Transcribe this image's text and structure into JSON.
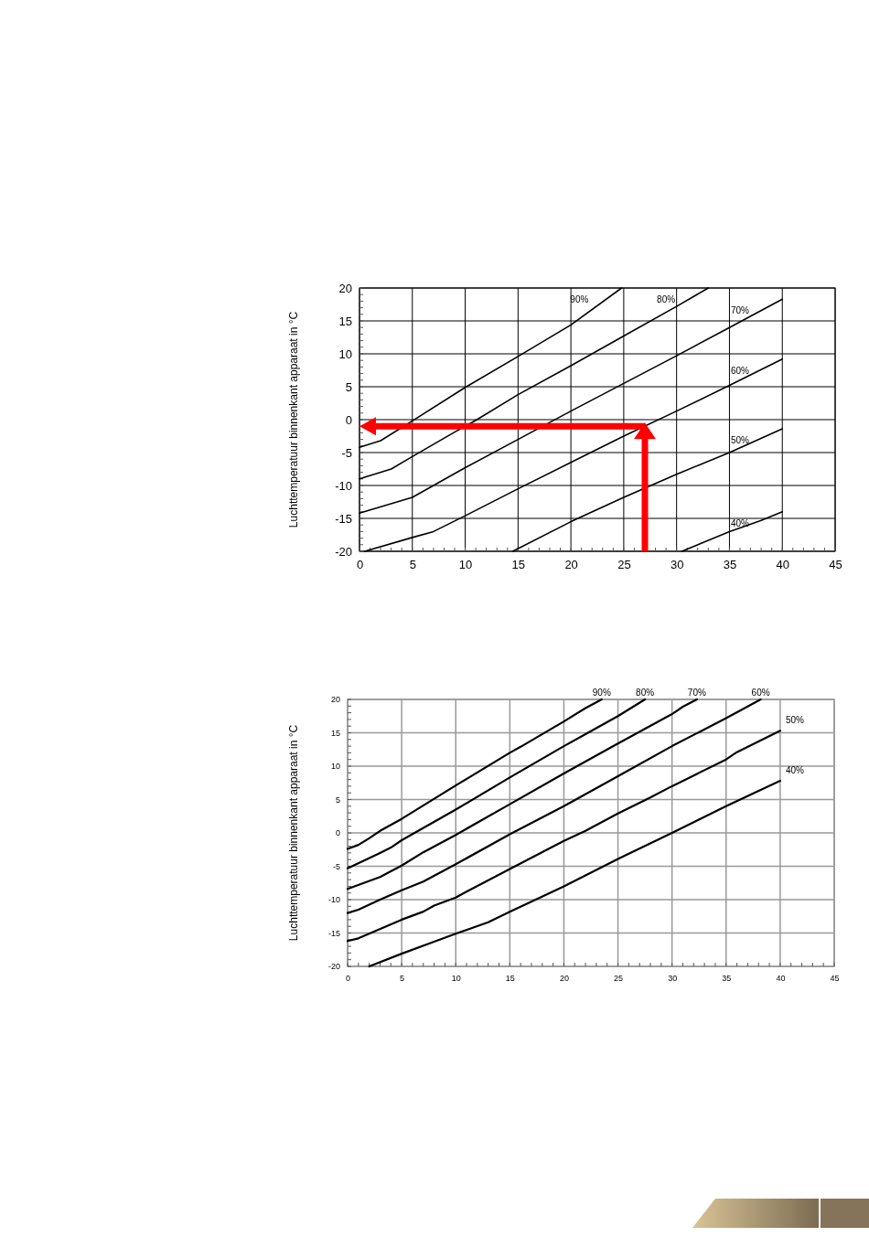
{
  "chart_data": [
    {
      "type": "line",
      "ylabel": "Luchttemperatuur binnenkant apparaat in °C",
      "xlim": [
        0,
        45
      ],
      "ylim": [
        -20,
        20
      ],
      "xticks": [
        0,
        5,
        10,
        15,
        20,
        25,
        30,
        35,
        40,
        45
      ],
      "yticks": [
        -20,
        -15,
        -10,
        -5,
        0,
        5,
        10,
        15,
        20
      ],
      "grid": true,
      "legend": false,
      "marker": "none",
      "line_style": "solid",
      "series": [
        {
          "name": "90%",
          "color": "#000000",
          "x": [
            0,
            2,
            5,
            10,
            15,
            20,
            24.8
          ],
          "values": [
            -4.2,
            -3.2,
            -0.2,
            4.9,
            9.6,
            14.4,
            20
          ]
        },
        {
          "name": "80%",
          "color": "#000000",
          "x": [
            0,
            3,
            5,
            9,
            11,
            15,
            20,
            25,
            30,
            33
          ],
          "values": [
            -9,
            -7.5,
            -5.6,
            -1.9,
            -0.1,
            3.8,
            8.2,
            12.7,
            17.2,
            20
          ]
        },
        {
          "name": "70%",
          "color": "#000000",
          "x": [
            0,
            5,
            10,
            15,
            20,
            25,
            30,
            35,
            40
          ],
          "values": [
            -14.2,
            -11.8,
            -7.3,
            -3,
            1.3,
            5.5,
            9.7,
            14,
            18.3
          ]
        },
        {
          "name": "60%",
          "color": "#000000",
          "x": [
            0.5,
            5,
            7,
            10,
            15,
            20,
            25,
            30,
            35,
            40
          ],
          "values": [
            -20,
            -17.9,
            -17,
            -14.6,
            -10.5,
            -6.5,
            -2.5,
            1.3,
            5.2,
            9.2
          ]
        },
        {
          "name": "50%",
          "color": "#000000",
          "x": [
            14.5,
            20,
            25,
            30,
            35,
            40
          ],
          "values": [
            -20,
            -15.5,
            -11.8,
            -8.3,
            -5,
            -1.4
          ]
        },
        {
          "name": "40%",
          "color": "#000000",
          "x": [
            30.5,
            35,
            38,
            40
          ],
          "values": [
            -20,
            -17,
            -15.3,
            -14
          ]
        }
      ]
    },
    {
      "type": "line",
      "ylabel": "Luchttemperatuur binnenkant apparaat in °C",
      "xlim": [
        0,
        45
      ],
      "ylim": [
        -20,
        20
      ],
      "xticks": [
        0,
        5,
        10,
        15,
        20,
        25,
        30,
        35,
        40,
        45
      ],
      "yticks": [
        -20,
        -15,
        -10,
        -5,
        0,
        5,
        10,
        15,
        20
      ],
      "grid": true,
      "legend": false,
      "marker": "none",
      "line_style": "solid",
      "series": [
        {
          "name": "90%",
          "color": "#000000",
          "x": [
            0,
            1,
            2,
            3,
            5,
            10,
            15,
            16,
            20,
            22,
            23.5
          ],
          "values": [
            -2.4,
            -1.8,
            -0.8,
            0.3,
            2.1,
            7.1,
            12,
            12.9,
            16.7,
            18.7,
            20
          ]
        },
        {
          "name": "80%",
          "color": "#000000",
          "x": [
            0,
            3,
            4,
            5,
            10,
            15,
            20,
            22,
            25,
            27.5
          ],
          "values": [
            -5.3,
            -3,
            -2.2,
            -1.1,
            3.5,
            8.3,
            13,
            14.8,
            17.5,
            20
          ]
        },
        {
          "name": "70%",
          "color": "#000000",
          "x": [
            0,
            3,
            5,
            7,
            10,
            15,
            20,
            25,
            30,
            31,
            32.3
          ],
          "values": [
            -8.4,
            -6.6,
            -4.9,
            -2.9,
            -0.3,
            4.3,
            8.9,
            13.4,
            17.8,
            18.9,
            20
          ]
        },
        {
          "name": "60%",
          "color": "#000000",
          "x": [
            0,
            1,
            3,
            5,
            7,
            10,
            15,
            20,
            25,
            30,
            35,
            38.2
          ],
          "values": [
            -12,
            -11.5,
            -10,
            -8.6,
            -7.3,
            -4.7,
            -0.2,
            4,
            8.5,
            13,
            17.2,
            20
          ]
        },
        {
          "name": "50%",
          "color": "#000000",
          "x": [
            0,
            1,
            5,
            7,
            8,
            10,
            11,
            15,
            20,
            22,
            25,
            28,
            30,
            35,
            36,
            40
          ],
          "values": [
            -16.2,
            -15.8,
            -13,
            -11.8,
            -10.9,
            -9.7,
            -8.8,
            -5.4,
            -1.2,
            0.3,
            2.9,
            5.3,
            7,
            11,
            12.1,
            15.3
          ]
        },
        {
          "name": "40%",
          "color": "#000000",
          "x": [
            2,
            5,
            8,
            10,
            13,
            15,
            20,
            25,
            30,
            35,
            40
          ],
          "values": [
            -20,
            -18.1,
            -16.3,
            -15.1,
            -13.4,
            -11.8,
            -8,
            -3.9,
            0,
            4,
            7.8
          ]
        }
      ]
    }
  ]
}
